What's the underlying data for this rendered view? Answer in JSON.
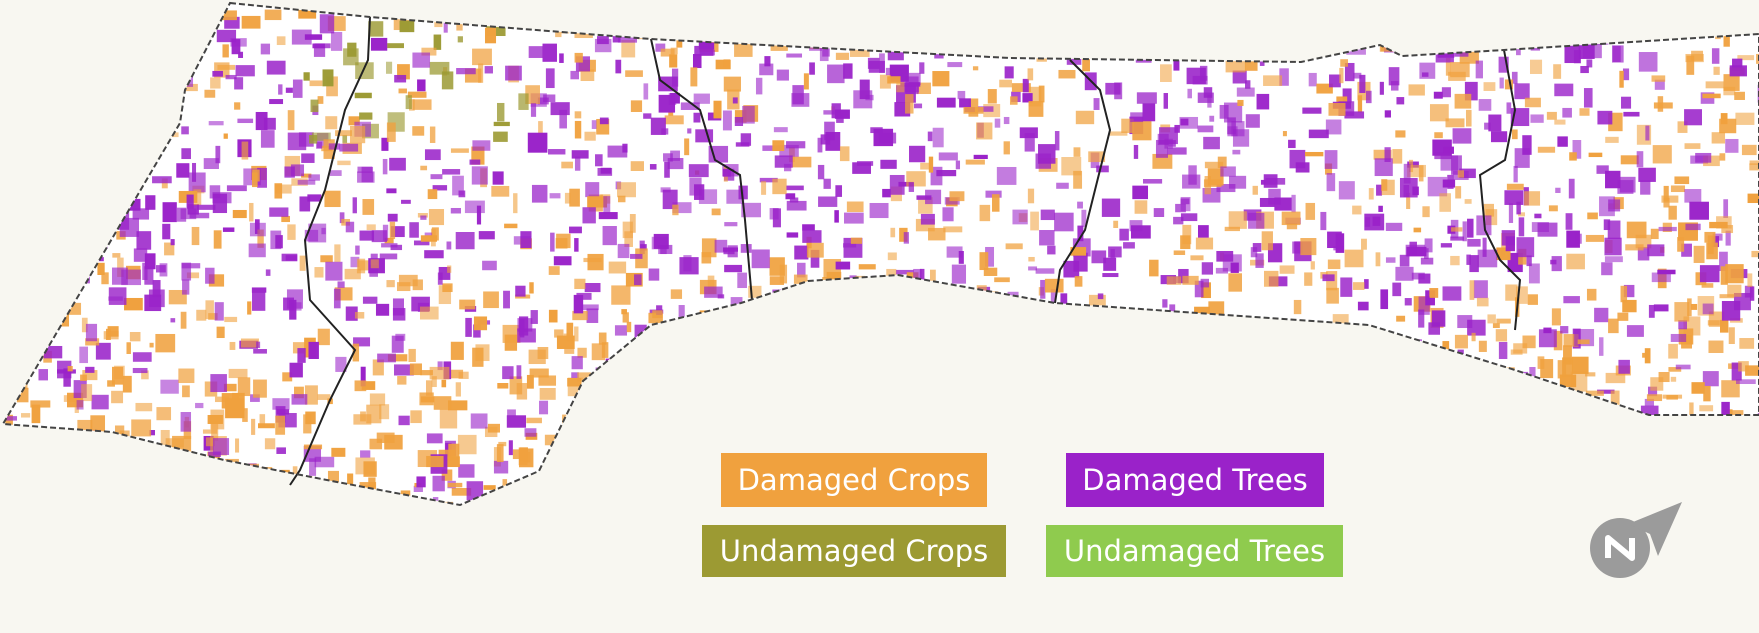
{
  "legend": {
    "items": [
      {
        "label": "Damaged Crops",
        "color": "#f0a13e"
      },
      {
        "label": "Damaged Trees",
        "color": "#9a22c9"
      },
      {
        "label": "Undamaged Crops",
        "color": "#9c9a33"
      },
      {
        "label": "Undamaged Trees",
        "color": "#8fcb4e"
      }
    ]
  }
}
